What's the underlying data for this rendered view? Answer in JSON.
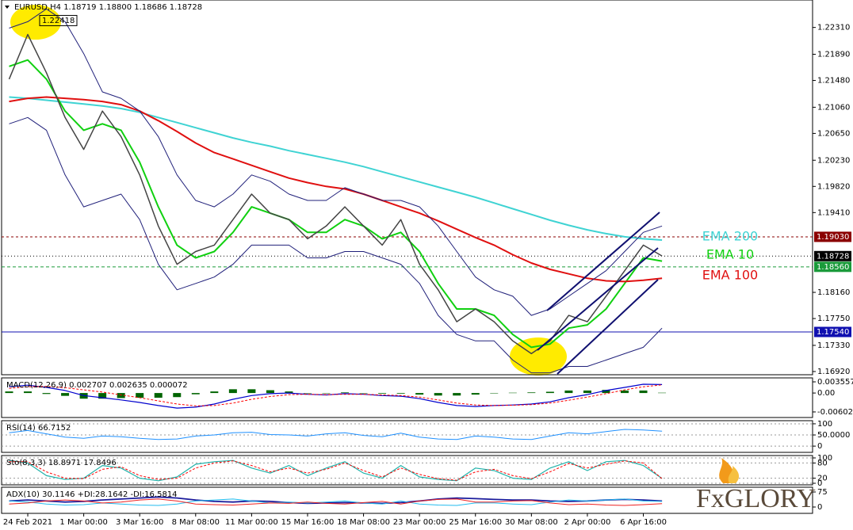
{
  "chart_data": [
    {
      "type": "line",
      "title": "EURUSD,H4  1.18719 1.18800 1.18686 1.18728",
      "categories": [
        null,
        "24 Feb 2021",
        null,
        null,
        "1 Mar 00:00",
        null,
        null,
        "3 Mar 16:00",
        null,
        null,
        "8 Mar 08:00",
        null,
        null,
        "11 Mar 00:00",
        null,
        null,
        "15 Mar 16:00",
        null,
        null,
        "18 Mar 08:00",
        null,
        null,
        "23 Mar 00:00",
        null,
        null,
        "25 Mar 16:00",
        null,
        null,
        "30 Mar 08:00",
        null,
        null,
        "2 Apr 00:00",
        null,
        null,
        "6 Apr 16:00",
        null
      ],
      "ylim": [
        1.1687,
        1.2274
      ],
      "yticks": [
        {
          "value": 1.2231,
          "label": "1.22310"
        },
        {
          "value": 1.2189,
          "label": "1.21890"
        },
        {
          "value": 1.2148,
          "label": "1.21480"
        },
        {
          "value": 1.2106,
          "label": "1.21060"
        },
        {
          "value": 1.2065,
          "label": "1.20650"
        },
        {
          "value": 1.2023,
          "label": "1.20230"
        },
        {
          "value": 1.1982,
          "label": "1.19820"
        },
        {
          "value": 1.1941,
          "label": "1.19410"
        },
        {
          "value": 1.1816,
          "label": "1.18160"
        },
        {
          "value": 1.1775,
          "label": "1.17750"
        },
        {
          "value": 1.1733,
          "label": "1.17330"
        },
        {
          "value": 1.1692,
          "label": "1.16920"
        }
      ],
      "series": [
        {
          "name": "EMA 200",
          "color": "#3fd3d3",
          "line_width": 2,
          "values": [
            1.2122,
            1.212,
            1.2117,
            1.2114,
            1.2111,
            1.2108,
            1.2104,
            1.2098,
            1.209,
            1.2082,
            1.2074,
            1.2066,
            1.2058,
            1.2051,
            1.2045,
            1.2038,
            1.2032,
            1.2026,
            1.202,
            1.2013,
            1.2005,
            1.1997,
            1.1989,
            1.1981,
            1.1973,
            1.1965,
            1.1956,
            1.1947,
            1.1938,
            1.1929,
            1.1921,
            1.1914,
            1.1908,
            1.1903,
            1.19,
            1.1898
          ]
        },
        {
          "name": "EMA 10",
          "color": "#10d010",
          "line_width": 2,
          "values": [
            1.217,
            1.218,
            1.215,
            1.21,
            1.207,
            1.208,
            1.207,
            1.202,
            1.195,
            1.189,
            1.187,
            1.188,
            1.191,
            1.195,
            1.194,
            1.193,
            1.191,
            1.191,
            1.193,
            1.192,
            1.19,
            1.191,
            1.188,
            1.183,
            1.179,
            1.179,
            1.178,
            1.175,
            1.173,
            1.1735,
            1.176,
            1.1765,
            1.179,
            1.183,
            1.187,
            1.1865
          ]
        },
        {
          "name": "EMA 100",
          "color": "#e01010",
          "line_width": 2,
          "values": [
            1.2115,
            1.212,
            1.2122,
            1.212,
            1.2118,
            1.2115,
            1.211,
            1.21,
            1.2085,
            1.2068,
            1.205,
            1.2035,
            1.2025,
            1.2015,
            1.2005,
            1.1995,
            1.1988,
            1.1982,
            1.1978,
            1.197,
            1.196,
            1.195,
            1.194,
            1.1928,
            1.1915,
            1.1902,
            1.189,
            1.1875,
            1.1862,
            1.1852,
            1.1845,
            1.1838,
            1.1834,
            1.1833,
            1.1835,
            1.1838
          ]
        },
        {
          "color": "#20207a",
          "line_width": 1,
          "values": [
            1.223,
            1.224,
            1.226,
            1.224,
            1.219,
            1.213,
            1.212,
            1.21,
            1.206,
            1.2,
            1.196,
            1.195,
            1.197,
            1.2,
            1.199,
            1.197,
            1.196,
            1.196,
            1.198,
            1.197,
            1.196,
            1.196,
            1.195,
            1.192,
            1.188,
            1.184,
            1.182,
            1.181,
            1.178,
            1.179,
            1.181,
            1.183,
            1.185,
            1.188,
            1.191,
            1.192
          ]
        },
        {
          "color": "#20207a",
          "line_width": 1,
          "values": [
            1.208,
            1.209,
            1.207,
            1.2,
            1.195,
            1.196,
            1.197,
            1.193,
            1.186,
            1.182,
            1.183,
            1.184,
            1.186,
            1.189,
            1.189,
            1.189,
            1.187,
            1.187,
            1.188,
            1.188,
            1.187,
            1.186,
            1.183,
            1.178,
            1.175,
            1.174,
            1.174,
            1.171,
            1.169,
            1.169,
            1.17,
            1.17,
            1.171,
            1.172,
            1.173,
            1.176
          ]
        },
        {
          "color": "#444444",
          "line_width": 1.5,
          "values": [
            1.215,
            1.222,
            1.216,
            1.209,
            1.204,
            1.21,
            1.206,
            1.2,
            1.192,
            1.186,
            1.188,
            1.189,
            1.193,
            1.197,
            1.194,
            1.193,
            1.19,
            1.192,
            1.195,
            1.192,
            1.189,
            1.193,
            1.186,
            1.182,
            1.177,
            1.179,
            1.177,
            1.174,
            1.172,
            1.174,
            1.178,
            1.177,
            1.181,
            1.185,
            1.189,
            1.1873
          ]
        }
      ],
      "levels": [
        {
          "value": 1.1903,
          "label": "1.19030",
          "color": "#8b0000",
          "dash": "3,3"
        },
        {
          "value": 1.18728,
          "label": "1.18728",
          "color": "#000000",
          "dash": "1,3"
        },
        {
          "value": 1.1856,
          "label": "1.18560",
          "color": "#1a9a3a",
          "dash": "4,3"
        },
        {
          "value": 1.1754,
          "label": "1.17540",
          "color": "#1010b0",
          "dash": "none"
        }
      ],
      "annotation": {
        "value": 1.22418,
        "label": "1.22418"
      }
    },
    {
      "type": "line",
      "title": "MACD(12,26,9) 0.002707 0.002635 0.000072",
      "ylim": [
        -0.0078,
        0.00482
      ],
      "yticks": [
        0.003557,
        {
          "value": 0,
          "label": "0.00"
        },
        -0.006024
      ],
      "series": [
        {
          "type": "bar",
          "color": "#006400",
          "values": [
            0.0005,
            0.0005,
            -0.0003,
            -0.0009,
            -0.0018,
            -0.0018,
            -0.0016,
            -0.0015,
            -0.0015,
            -0.0013,
            -0.0004,
            0.0005,
            0.0012,
            0.0012,
            0.0009,
            0.0005,
            0.0,
            -0.0001,
            0.0002,
            0.0,
            -0.0002,
            -0.0002,
            -0.0005,
            -0.0008,
            -0.0008,
            -0.0005,
            0.0,
            0.0001,
            0.0002,
            0.0004,
            0.0008,
            0.0008,
            0.001,
            0.0008,
            0.0008,
            0.0001
          ]
        },
        {
          "color": "#0000cd",
          "line_width": 1.2,
          "values": [
            0.002,
            0.0025,
            0.0018,
            0.0008,
            -0.0008,
            -0.0015,
            -0.0022,
            -0.003,
            -0.004,
            -0.0048,
            -0.0045,
            -0.0035,
            -0.002,
            -0.0008,
            -0.0002,
            0.0,
            -0.0004,
            -0.0006,
            -0.0002,
            -0.0004,
            -0.0008,
            -0.001,
            -0.0018,
            -0.003,
            -0.004,
            -0.0043,
            -0.004,
            -0.0038,
            -0.0035,
            -0.0028,
            -0.0015,
            -0.0005,
            0.0008,
            0.0018,
            0.0028,
            0.0027
          ]
        },
        {
          "color": "#ff0000",
          "line_width": 1,
          "dash": "3,2",
          "values": [
            0.0015,
            0.002,
            0.0021,
            0.0017,
            0.001,
            0.0003,
            -0.0006,
            -0.0015,
            -0.0025,
            -0.0035,
            -0.0041,
            -0.004,
            -0.0032,
            -0.002,
            -0.0011,
            -0.0005,
            -0.0004,
            -0.0005,
            -0.0004,
            -0.0004,
            -0.0006,
            -0.0008,
            -0.0013,
            -0.0022,
            -0.0032,
            -0.0038,
            -0.004,
            -0.0039,
            -0.0037,
            -0.0032,
            -0.0023,
            -0.0013,
            -0.0002,
            0.001,
            0.002,
            0.0026
          ]
        }
      ]
    },
    {
      "type": "line",
      "title": "RSI(14) 66.7152",
      "ylim": [
        -28,
        114
      ],
      "grid": true,
      "yticks": [
        100,
        {
          "value": 50,
          "label": "50.0000"
        },
        0
      ],
      "series": [
        {
          "color": "#1e90ff",
          "line_width": 1,
          "values": [
            60,
            70,
            55,
            40,
            35,
            45,
            42,
            35,
            30,
            32,
            45,
            50,
            60,
            62,
            52,
            50,
            45,
            55,
            60,
            48,
            42,
            58,
            40,
            32,
            30,
            45,
            40,
            32,
            30,
            45,
            60,
            55,
            65,
            75,
            72,
            67
          ]
        }
      ]
    },
    {
      "type": "line",
      "title": "Sto(8,3,3) 18.8971 17.8496",
      "ylim": [
        -6.25,
        109.4
      ],
      "grid": true,
      "yticks": [
        100,
        80,
        20,
        0
      ],
      "series": [
        {
          "color": "#20b2aa",
          "line_width": 1.2,
          "values": [
            90,
            80,
            30,
            15,
            20,
            70,
            60,
            20,
            10,
            25,
            75,
            85,
            90,
            60,
            40,
            70,
            30,
            60,
            85,
            40,
            20,
            70,
            25,
            15,
            10,
            60,
            50,
            20,
            15,
            60,
            85,
            50,
            85,
            90,
            70,
            19
          ]
        },
        {
          "color": "#ff0000",
          "line_width": 1,
          "dash": "3,2",
          "values": [
            85,
            85,
            45,
            20,
            18,
            55,
            65,
            30,
            15,
            20,
            60,
            80,
            88,
            70,
            45,
            60,
            40,
            55,
            80,
            50,
            25,
            60,
            35,
            18,
            12,
            45,
            55,
            30,
            18,
            45,
            78,
            60,
            75,
            88,
            80,
            18
          ]
        }
      ]
    },
    {
      "type": "line",
      "title": "ADX(10) 30.1146 +DI:28.1642 -DI:16.5814",
      "ylim": [
        -31.6,
        98.7
      ],
      "yticks": [
        75,
        0
      ],
      "series": [
        {
          "color": "#1c1c9c",
          "line_width": 1.8,
          "values": [
            30,
            35,
            30,
            25,
            28,
            35,
            40,
            45,
            50,
            45,
            35,
            28,
            25,
            30,
            28,
            22,
            18,
            20,
            22,
            20,
            18,
            22,
            30,
            40,
            45,
            42,
            38,
            35,
            35,
            30,
            28,
            30,
            35,
            38,
            35,
            30
          ]
        },
        {
          "color": "#22bbee",
          "line_width": 1,
          "values": [
            30,
            25,
            15,
            10,
            12,
            20,
            15,
            10,
            8,
            15,
            30,
            35,
            40,
            30,
            20,
            25,
            20,
            25,
            30,
            20,
            15,
            30,
            15,
            10,
            8,
            20,
            20,
            15,
            12,
            25,
            35,
            30,
            35,
            40,
            30,
            28
          ]
        },
        {
          "color": "#ee2222",
          "line_width": 1,
          "values": [
            15,
            20,
            30,
            35,
            30,
            20,
            25,
            35,
            40,
            30,
            15,
            12,
            10,
            15,
            20,
            18,
            25,
            18,
            15,
            22,
            28,
            15,
            30,
            38,
            40,
            25,
            25,
            30,
            32,
            20,
            12,
            15,
            10,
            8,
            12,
            17
          ]
        }
      ]
    }
  ],
  "brand": "FxGLORY"
}
